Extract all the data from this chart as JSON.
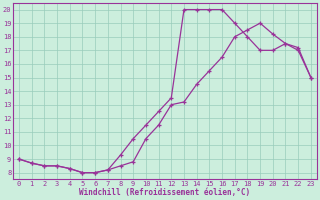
{
  "bg_color": "#cceedd",
  "grid_color": "#99ccbb",
  "line_color": "#993399",
  "xlabel": "Windchill (Refroidissement éolien,°C)",
  "xlim": [
    -0.5,
    23.5
  ],
  "ylim": [
    7.5,
    20.5
  ],
  "xticks": [
    0,
    1,
    2,
    3,
    4,
    5,
    6,
    7,
    8,
    9,
    10,
    11,
    12,
    13,
    14,
    15,
    16,
    17,
    18,
    19,
    20,
    21,
    22,
    23
  ],
  "yticks": [
    8,
    9,
    10,
    11,
    12,
    13,
    14,
    15,
    16,
    17,
    18,
    19,
    20
  ],
  "curve1_x": [
    0,
    1,
    2,
    3,
    4,
    5,
    6,
    7,
    8,
    9,
    10,
    11,
    12,
    13,
    14,
    15,
    16,
    17,
    18,
    19,
    20,
    21,
    22,
    23
  ],
  "curve1_y": [
    9.0,
    8.7,
    8.5,
    8.5,
    8.3,
    8.0,
    8.0,
    8.2,
    9.3,
    10.5,
    11.5,
    12.5,
    13.5,
    20.0,
    20.0,
    20.0,
    20.0,
    19.0,
    18.0,
    17.0,
    17.0,
    17.5,
    17.2,
    15.0
  ],
  "curve2_x": [
    0,
    1,
    2,
    3,
    4,
    5,
    6,
    7,
    8,
    9,
    10,
    11,
    12,
    13,
    14,
    15,
    16,
    17,
    18,
    19,
    20,
    21,
    22,
    23
  ],
  "curve2_y": [
    9.0,
    8.7,
    8.5,
    8.5,
    8.3,
    8.0,
    8.0,
    8.2,
    8.5,
    8.8,
    10.5,
    11.5,
    13.0,
    13.2,
    14.5,
    15.5,
    16.5,
    18.0,
    18.5,
    19.0,
    18.2,
    17.5,
    17.0,
    15.0
  ]
}
